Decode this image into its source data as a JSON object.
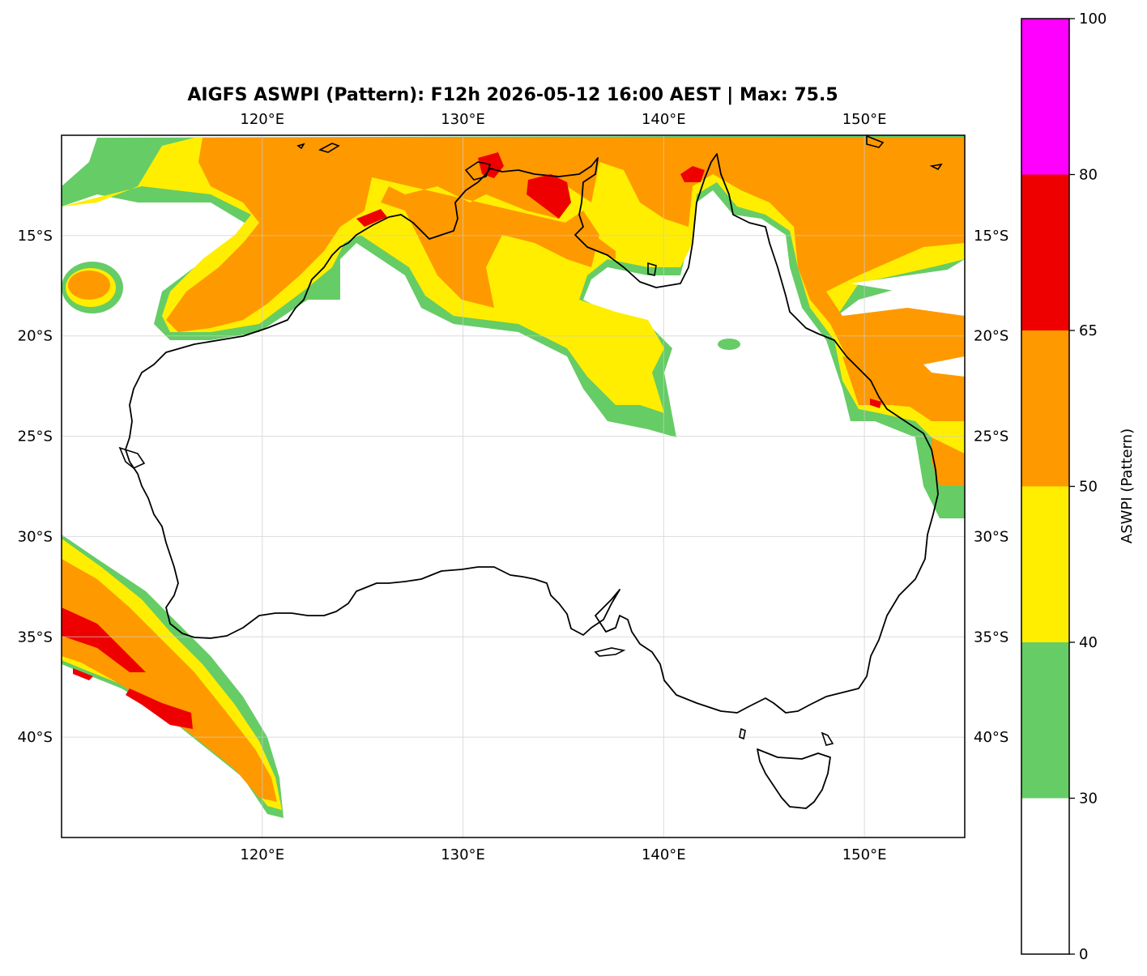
{
  "map": {
    "title": "AIGFS ASWPI (Pattern): F12h 2026-05-12 16:00 AEST | Max: 75.5",
    "lon_range": [
      110,
      155
    ],
    "lat_range": [
      -45,
      -10
    ],
    "lon_ticks": [
      {
        "value": 120,
        "label": "120°E"
      },
      {
        "value": 130,
        "label": "130°E"
      },
      {
        "value": 140,
        "label": "140°E"
      },
      {
        "value": 150,
        "label": "150°E"
      }
    ],
    "lat_ticks": [
      {
        "value": -15,
        "label": "15°S"
      },
      {
        "value": -20,
        "label": "20°S"
      },
      {
        "value": -25,
        "label": "25°S"
      },
      {
        "value": -30,
        "label": "30°S"
      },
      {
        "value": -35,
        "label": "35°S"
      },
      {
        "value": -40,
        "label": "40°S"
      }
    ],
    "grid": true
  },
  "colorbar": {
    "label": "ASWPI (Pattern)",
    "bins": [
      {
        "from": 0,
        "to": 30,
        "color": "#ffffff"
      },
      {
        "from": 30,
        "to": 40,
        "color": "#66cc66"
      },
      {
        "from": 40,
        "to": 50,
        "color": "#ffee00"
      },
      {
        "from": 50,
        "to": 65,
        "color": "#ff9900"
      },
      {
        "from": 65,
        "to": 80,
        "color": "#ee0000"
      },
      {
        "from": 80,
        "to": 100,
        "color": "#ff00ff"
      }
    ],
    "ticks": [
      {
        "value": 0,
        "label": "0"
      },
      {
        "value": 30,
        "label": "30"
      },
      {
        "value": 40,
        "label": "40"
      },
      {
        "value": 50,
        "label": "50"
      },
      {
        "value": 65,
        "label": "65"
      },
      {
        "value": 80,
        "label": "80"
      },
      {
        "value": 100,
        "label": "100"
      }
    ]
  }
}
